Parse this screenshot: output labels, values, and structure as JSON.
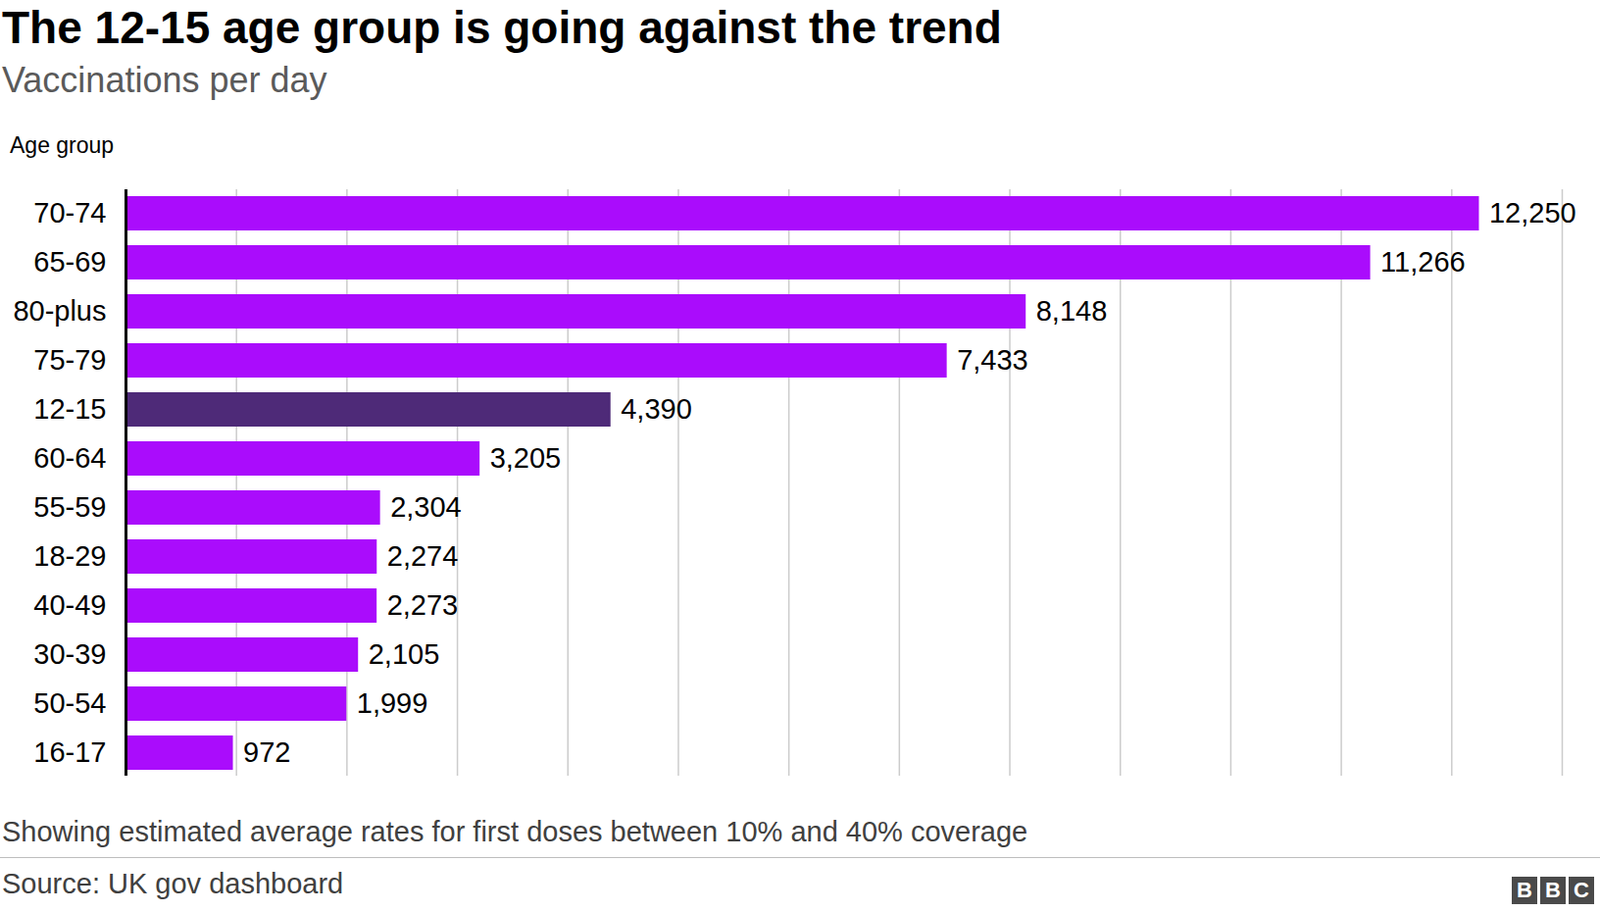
{
  "chart_data": {
    "type": "bar",
    "orientation": "horizontal",
    "title": "The 12-15 age group is going against the trend",
    "subtitle": "Vaccinations per day",
    "ylabel": "Age group",
    "categories": [
      "70-74",
      "65-69",
      "80-plus",
      "75-79",
      "12-15",
      "60-64",
      "55-59",
      "18-29",
      "40-49",
      "30-39",
      "50-54",
      "16-17"
    ],
    "values": [
      12250,
      11266,
      8148,
      7433,
      4390,
      3205,
      2304,
      2274,
      2273,
      2105,
      1999,
      972
    ],
    "value_labels": [
      "12,250",
      "11,266",
      "8,148",
      "7,433",
      "4,390",
      "3,205",
      "2,304",
      "2,274",
      "2,273",
      "2,105",
      "1,999",
      "972"
    ],
    "colors": [
      "#aa0cfc",
      "#aa0cfc",
      "#aa0cfc",
      "#aa0cfc",
      "#4e2a78",
      "#aa0cfc",
      "#aa0cfc",
      "#aa0cfc",
      "#aa0cfc",
      "#aa0cfc",
      "#aa0cfc",
      "#aa0cfc"
    ],
    "xlim": [
      0,
      13000
    ],
    "xticks": [
      0,
      1000,
      2000,
      3000,
      4000,
      5000,
      6000,
      7000,
      8000,
      9000,
      10000,
      11000,
      12000,
      13000
    ],
    "grid": true,
    "tick_labels": "y",
    "data_labels": true,
    "note": "Showing estimated average rates for first doses between 10% and 40% coverage",
    "source": "Source: UK gov dashboard",
    "logo": "BBC"
  }
}
